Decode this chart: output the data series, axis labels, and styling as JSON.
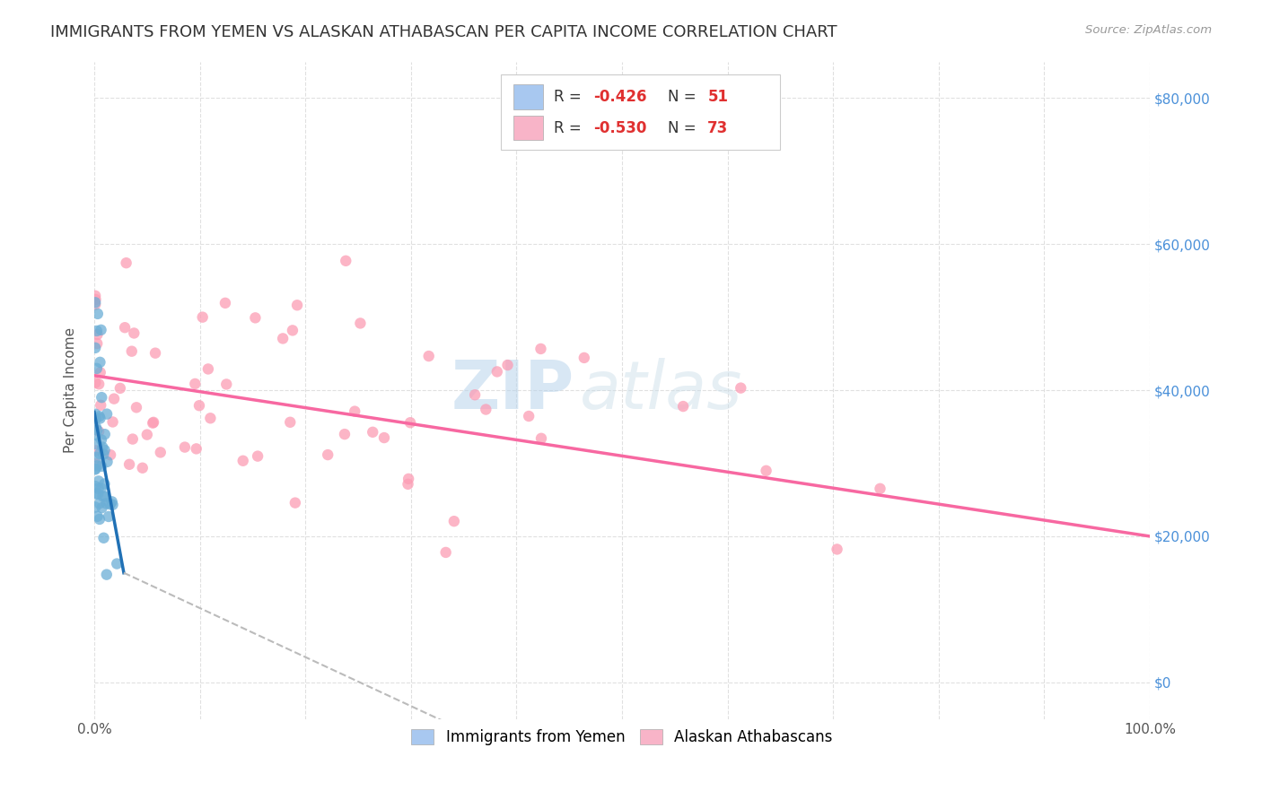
{
  "title": "IMMIGRANTS FROM YEMEN VS ALASKAN ATHABASCAN PER CAPITA INCOME CORRELATION CHART",
  "source": "Source: ZipAtlas.com",
  "ylabel": "Per Capita Income",
  "ytick_labels": [
    "$0",
    "$20,000",
    "$40,000",
    "$60,000",
    "$80,000"
  ],
  "ytick_values": [
    0,
    20000,
    40000,
    60000,
    80000
  ],
  "ylim_min": -5000,
  "ylim_max": 85000,
  "xlim_min": 0.0,
  "xlim_max": 1.0,
  "watermark_zip": "ZIP",
  "watermark_atlas": "atlas",
  "legend": {
    "r1": "-0.426",
    "n1": "51",
    "r2": "-0.530",
    "n2": "73",
    "color1": "#a8c8f0",
    "color2": "#f8b4c8",
    "label1": "Immigrants from Yemen",
    "label2": "Alaskan Athabascans"
  },
  "blue_color": "#6baed6",
  "pink_color": "#fc9cb4",
  "blue_line_color": "#2171b5",
  "pink_line_color": "#f768a1",
  "dashed_line_color": "#bbbbbb",
  "grid_color": "#dddddd",
  "background_color": "#ffffff",
  "title_fontsize": 13,
  "axis_label_fontsize": 11,
  "tick_fontsize": 11,
  "legend_r_color": "#333333",
  "legend_val_color": "#e03030",
  "right_tick_color": "#4a90d9"
}
